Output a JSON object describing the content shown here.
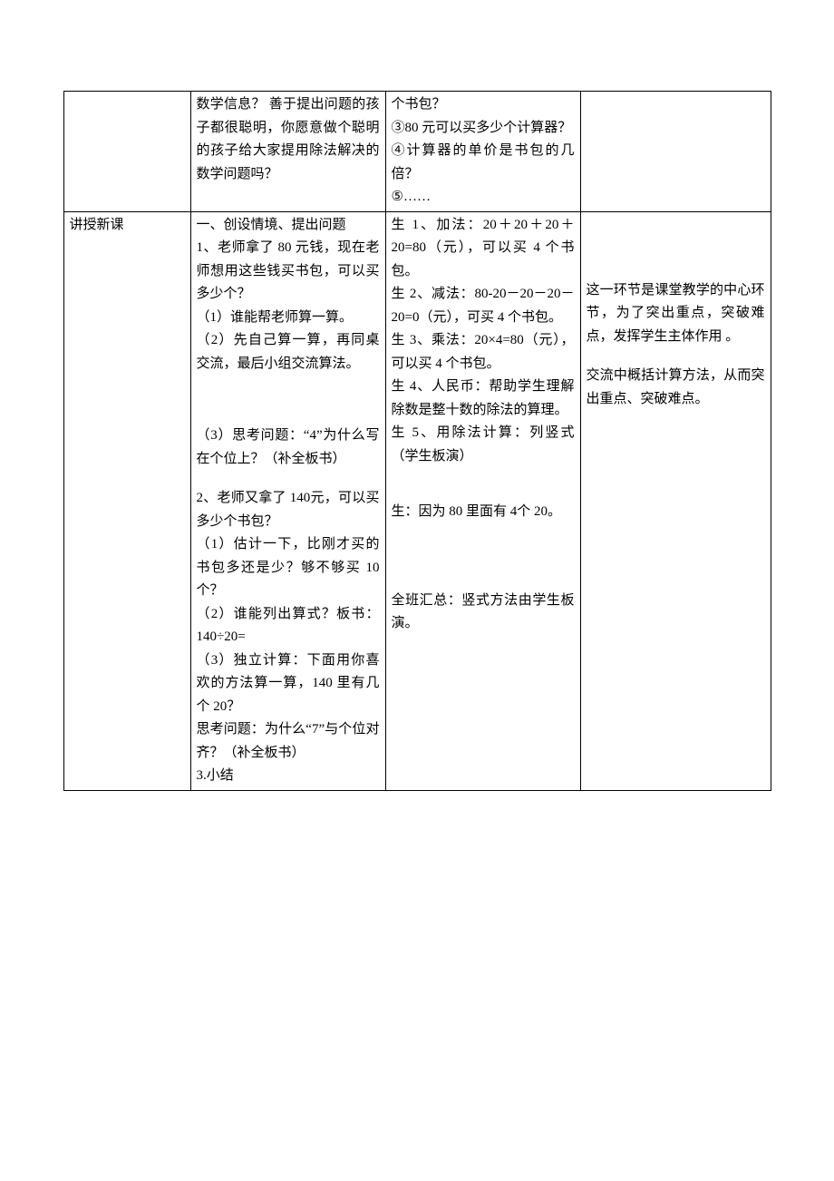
{
  "table": {
    "row1": {
      "col1": "",
      "col2": "数学信息？  善于提出问题的孩子都很聪明，你愿意做个聪明的孩子给大家提用除法解决的数学问题吗？",
      "col3": "个书包？\n③80 元可以买多少个计算器？\n④计算器的单价是书包的几倍？\n⑤……",
      "col4": ""
    },
    "row2": {
      "col1": "讲授新课",
      "col2_a": "一、创设情境、提出问题\n1、老师拿了 80 元钱，现在老师想用这些钱买书包，可以买多少个？\n（1）谁能帮老师算一算。\n（2）先自己算一算，再同桌交流，最后小组交流算法。",
      "col2_b": "（3）思考问题：“4”为什么写在个位上？（补全板书）",
      "col2_c": "2、老师又拿了 140元，可以买多少个书包？\n（1）估计一下，比刚才买的书包多还是少？够不够买 10个？\n（2）谁能列出算式？板书：140÷20=\n（3）独立计算：下面用你喜欢的方法算一算，140 里有几个 20？\n思考问题：为什么“7”与个位对齐？（补全板书）\n  3.小结",
      "col3_a": "生 1、加法：20＋20＋20＋20=80（元），可以买 4 个书包。\n生 2、减法：80-20－20－20－20=0（元），可买 4 个书包。\n 生 3、乘法：20×4=80（元），可以买 4 个书包。\n 生 4、人民币：帮助学生理解除数是整十数的除法的算理。\n生 5、用除法计算：列竖式（学生板演）",
      "col3_b": "生：因为 80 里面有 4个 20。",
      "col3_c": "全班汇总：竖式方法由学生板演。",
      "col4_a": "这一环节是课堂教学的中心环节，为了突出重点，突破难点，发挥学生主体作用  。",
      "col4_b": "交流中概括计算方法，从而突出重点、突破难点。"
    }
  }
}
